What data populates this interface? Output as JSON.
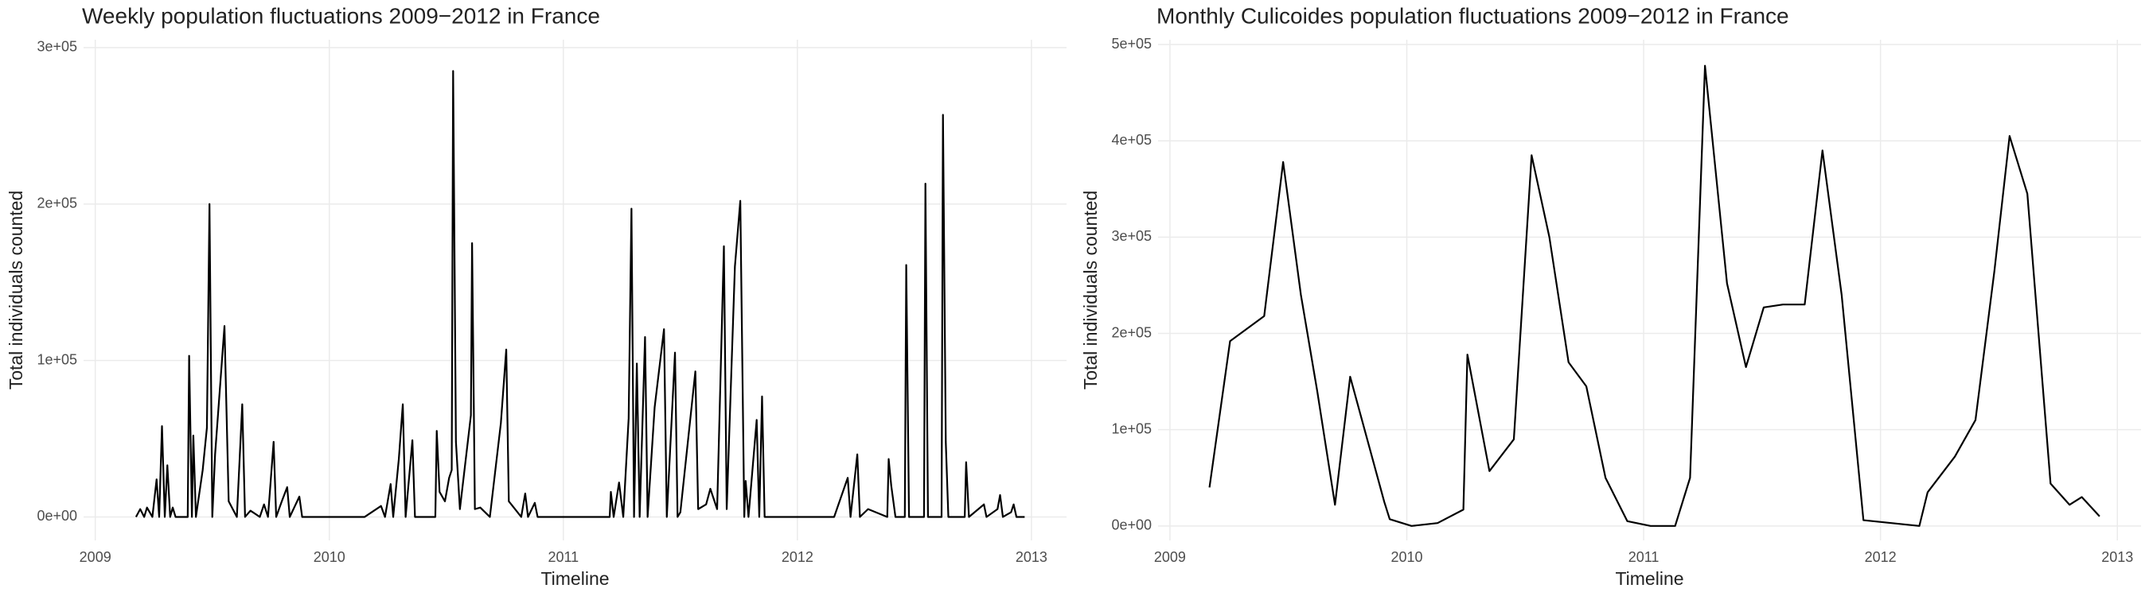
{
  "chart_data": [
    {
      "type": "line",
      "title": "Weekly population fluctuations 2009−2012 in France",
      "x_label": "Timeline",
      "y_label": "Total individuals counted",
      "grid": true,
      "xlim": [
        2008.95,
        2013.15
      ],
      "xticks": [
        2009,
        2010,
        2011,
        2012,
        2013
      ],
      "ylim": [
        -15000,
        305000
      ],
      "yticks": [
        {
          "value": 0,
          "label": "0e+00"
        },
        {
          "value": 100000,
          "label": "1e+05"
        },
        {
          "value": 200000,
          "label": "2e+05"
        },
        {
          "value": 300000,
          "label": "3e+05"
        }
      ],
      "series": [
        {
          "color": "#000000",
          "x": [
            2009.174,
            2009.192,
            2009.209,
            2009.221,
            2009.244,
            2009.262,
            2009.273,
            2009.285,
            2009.297,
            2009.308,
            2009.32,
            2009.331,
            2009.343,
            2009.395,
            2009.401,
            2009.413,
            2009.419,
            2009.43,
            2009.459,
            2009.477,
            2009.488,
            2009.5,
            2009.512,
            2009.552,
            2009.57,
            2009.605,
            2009.628,
            2009.64,
            2009.663,
            2009.703,
            2009.721,
            2009.738,
            2009.762,
            2009.773,
            2009.797,
            2009.82,
            2009.831,
            2009.872,
            2009.884,
            2009.977,
            2010.151,
            2010.221,
            2010.238,
            2010.262,
            2010.273,
            2010.297,
            2010.314,
            2010.326,
            2010.355,
            2010.366,
            2010.453,
            2010.459,
            2010.471,
            2010.494,
            2010.512,
            2010.523,
            2010.529,
            2010.541,
            2010.558,
            2010.605,
            2010.61,
            2010.622,
            2010.645,
            2010.686,
            2010.733,
            2010.756,
            2010.767,
            2010.82,
            2010.837,
            2010.849,
            2010.878,
            2010.89,
            2010.965,
            2011.11,
            2011.198,
            2011.203,
            2011.215,
            2011.238,
            2011.256,
            2011.279,
            2011.291,
            2011.302,
            2011.314,
            2011.326,
            2011.349,
            2011.36,
            2011.39,
            2011.43,
            2011.442,
            2011.477,
            2011.488,
            2011.5,
            2011.564,
            2011.576,
            2011.61,
            2011.628,
            2011.657,
            2011.686,
            2011.698,
            2011.733,
            2011.756,
            2011.773,
            2011.779,
            2011.791,
            2011.826,
            2011.837,
            2011.849,
            2011.86,
            2011.895,
            2012.07,
            2012.157,
            2012.215,
            2012.227,
            2012.256,
            2012.267,
            2012.302,
            2012.384,
            2012.39,
            2012.401,
            2012.419,
            2012.459,
            2012.465,
            2012.477,
            2012.541,
            2012.547,
            2012.558,
            2012.616,
            2012.622,
            2012.634,
            2012.645,
            2012.715,
            2012.721,
            2012.733,
            2012.797,
            2012.808,
            2012.855,
            2012.866,
            2012.878,
            2012.913,
            2012.924,
            2012.936,
            2012.971
          ],
          "values": [
            0,
            5000,
            0,
            6000,
            0,
            24000,
            0,
            58000,
            0,
            33000,
            0,
            6000,
            0,
            0,
            103000,
            0,
            52000,
            0,
            30000,
            57000,
            200000,
            0,
            40000,
            122000,
            10000,
            0,
            72000,
            0,
            4000,
            0,
            8000,
            0,
            48000,
            0,
            10000,
            19000,
            0,
            13000,
            0,
            0,
            0,
            7000,
            0,
            21000,
            0,
            37000,
            72000,
            0,
            49000,
            0,
            0,
            55000,
            16000,
            10000,
            25000,
            30000,
            285000,
            48000,
            5000,
            65000,
            175000,
            5000,
            6000,
            0,
            60000,
            107000,
            10000,
            0,
            15000,
            0,
            9000,
            0,
            0,
            0,
            0,
            16000,
            0,
            22000,
            0,
            63000,
            197000,
            0,
            98000,
            0,
            115000,
            0,
            70000,
            120000,
            0,
            105000,
            0,
            3000,
            93000,
            5000,
            8000,
            18000,
            5000,
            173000,
            5000,
            160000,
            202000,
            0,
            23000,
            0,
            62000,
            0,
            77000,
            0,
            0,
            0,
            0,
            25000,
            0,
            40000,
            0,
            5000,
            0,
            37000,
            20000,
            0,
            0,
            161000,
            0,
            0,
            213000,
            0,
            0,
            257000,
            48000,
            0,
            0,
            35000,
            0,
            8000,
            0,
            5000,
            14000,
            0,
            3000,
            8000,
            0,
            0
          ]
        }
      ]
    },
    {
      "type": "line",
      "title": "Monthly Culicoides population fluctuations 2009−2012 in France",
      "x_label": "Timeline",
      "y_label": "Total individuals counted",
      "grid": true,
      "xlim": [
        2008.95,
        2013.1
      ],
      "xticks": [
        2009,
        2010,
        2011,
        2012,
        2013
      ],
      "ylim": [
        -15000,
        505000
      ],
      "yticks": [
        {
          "value": 0,
          "label": "0e+00"
        },
        {
          "value": 100000,
          "label": "1e+05"
        },
        {
          "value": 200000,
          "label": "2e+05"
        },
        {
          "value": 300000,
          "label": "3e+05"
        },
        {
          "value": 400000,
          "label": "4e+05"
        },
        {
          "value": 500000,
          "label": "5e+05"
        }
      ],
      "series": [
        {
          "color": "#000000",
          "x": [
            2009.167,
            2009.254,
            2009.398,
            2009.478,
            2009.553,
            2009.622,
            2009.697,
            2009.761,
            2009.905,
            2009.928,
            2010.02,
            2010.13,
            2010.239,
            2010.256,
            2010.349,
            2010.452,
            2010.527,
            2010.602,
            2010.683,
            2010.758,
            2010.839,
            2010.931,
            2011.029,
            2011.133,
            2011.196,
            2011.259,
            2011.352,
            2011.432,
            2011.507,
            2011.588,
            2011.68,
            2011.755,
            2011.836,
            2011.928,
            2012.164,
            2012.199,
            2012.314,
            2012.401,
            2012.481,
            2012.545,
            2012.62,
            2012.718,
            2012.798,
            2012.85,
            2012.925
          ],
          "values": [
            40000,
            192000,
            218000,
            378000,
            240000,
            140000,
            22000,
            155000,
            25000,
            7000,
            0,
            3000,
            17000,
            178000,
            57000,
            90000,
            385000,
            300000,
            170000,
            145000,
            50000,
            5000,
            0,
            0,
            50000,
            478000,
            252000,
            165000,
            227000,
            230000,
            230000,
            390000,
            240000,
            6000,
            0,
            35000,
            72000,
            110000,
            265000,
            405000,
            345000,
            44000,
            22000,
            30000,
            10000
          ]
        }
      ]
    }
  ]
}
